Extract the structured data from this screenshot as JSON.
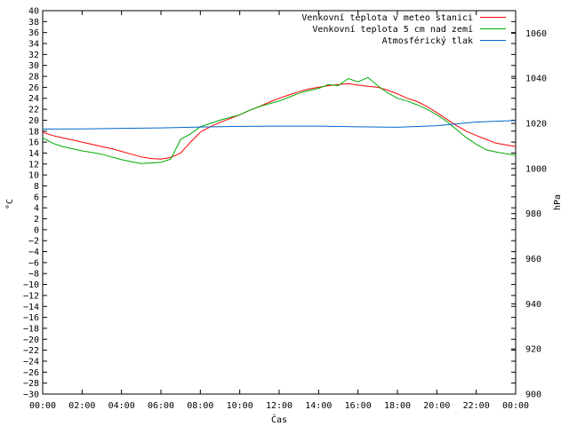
{
  "chart_data": {
    "type": "line",
    "xlabel": "Čas",
    "ylabel": "°C",
    "y2label": "hPa",
    "x_ticks": [
      "00:00",
      "02:00",
      "04:00",
      "06:00",
      "08:00",
      "10:00",
      "12:00",
      "14:00",
      "16:00",
      "18:00",
      "20:00",
      "22:00",
      "00:00"
    ],
    "xlim": [
      0,
      24
    ],
    "ylim": [
      -30,
      40
    ],
    "y_ticks": [
      40,
      38,
      36,
      34,
      32,
      30,
      28,
      26,
      24,
      22,
      20,
      18,
      16,
      14,
      12,
      10,
      8,
      6,
      4,
      2,
      0,
      -2,
      -4,
      -6,
      -8,
      -10,
      -12,
      -14,
      -16,
      -18,
      -20,
      -22,
      -24,
      -26,
      -28,
      -30
    ],
    "y2lim": [
      900,
      1070
    ],
    "y2_ticks": [
      1060,
      1040,
      1020,
      1000,
      980,
      960,
      940,
      920,
      900
    ],
    "grid": false,
    "legend_position": "top-right",
    "series": [
      {
        "name": "Venkovní teplota v meteo stanici",
        "color": "#ff0000",
        "axis": "left",
        "x": [
          0,
          0.5,
          1,
          1.5,
          2,
          2.5,
          3,
          3.5,
          4,
          4.5,
          5,
          5.5,
          6,
          6.5,
          7,
          7.5,
          8,
          8.5,
          9,
          9.5,
          10,
          10.5,
          11,
          11.5,
          12,
          12.5,
          13,
          13.5,
          14,
          14.5,
          15,
          15.5,
          16,
          16.5,
          17,
          17.5,
          18,
          18.5,
          19,
          19.5,
          20,
          20.5,
          21,
          21.5,
          22,
          22.5,
          23,
          23.5,
          24
        ],
        "y": [
          17.8,
          17.2,
          16.8,
          16.4,
          16.0,
          15.6,
          15.2,
          14.8,
          14.3,
          13.8,
          13.3,
          13.0,
          12.9,
          13.2,
          14.0,
          16.0,
          17.8,
          18.8,
          19.6,
          20.3,
          21.0,
          21.8,
          22.5,
          23.3,
          24.0,
          24.6,
          25.2,
          25.7,
          26.0,
          26.3,
          26.5,
          26.7,
          26.4,
          26.2,
          26.0,
          25.5,
          24.8,
          24.0,
          23.4,
          22.5,
          21.4,
          20.2,
          19.0,
          18.0,
          17.2,
          16.5,
          15.8,
          15.5,
          15.2
        ]
      },
      {
        "name": "Venkovní teplota 5 cm nad zemí",
        "color": "#00aa00",
        "axis": "left",
        "x": [
          0,
          0.5,
          1,
          1.5,
          2,
          2.5,
          3,
          3.5,
          4,
          4.5,
          5,
          5.5,
          6,
          6.5,
          7,
          7.5,
          8,
          8.5,
          9,
          9.5,
          10,
          10.5,
          11,
          11.5,
          12,
          12.5,
          13,
          13.5,
          14,
          14.5,
          15,
          15.5,
          16,
          16.5,
          17,
          17.5,
          18,
          18.5,
          19,
          19.5,
          20,
          20.5,
          21,
          21.5,
          22,
          22.5,
          23,
          23.5,
          24
        ],
        "y": [
          16.8,
          15.8,
          15.2,
          14.8,
          14.4,
          14.1,
          13.8,
          13.3,
          12.8,
          12.4,
          12.1,
          12.2,
          12.3,
          12.9,
          16.5,
          17.5,
          18.8,
          19.4,
          20.0,
          20.5,
          21.0,
          21.8,
          22.5,
          23.0,
          23.5,
          24.2,
          24.9,
          25.4,
          25.8,
          26.5,
          26.3,
          27.6,
          27.0,
          27.8,
          26.3,
          25.0,
          24.0,
          23.5,
          22.8,
          22.0,
          21.0,
          19.8,
          18.3,
          16.8,
          15.6,
          14.6,
          14.2,
          13.9,
          13.6
        ]
      },
      {
        "name": "Atmosférický tlak",
        "color": "#0066cc",
        "axis": "right",
        "x": [
          0,
          2,
          4,
          6,
          8,
          10,
          12,
          14,
          16,
          18,
          20,
          22,
          24
        ],
        "y": [
          1017.5,
          1017.6,
          1017.8,
          1018.0,
          1018.4,
          1018.7,
          1018.8,
          1018.8,
          1018.5,
          1018.3,
          1019.0,
          1020.6,
          1021.3
        ]
      }
    ]
  }
}
